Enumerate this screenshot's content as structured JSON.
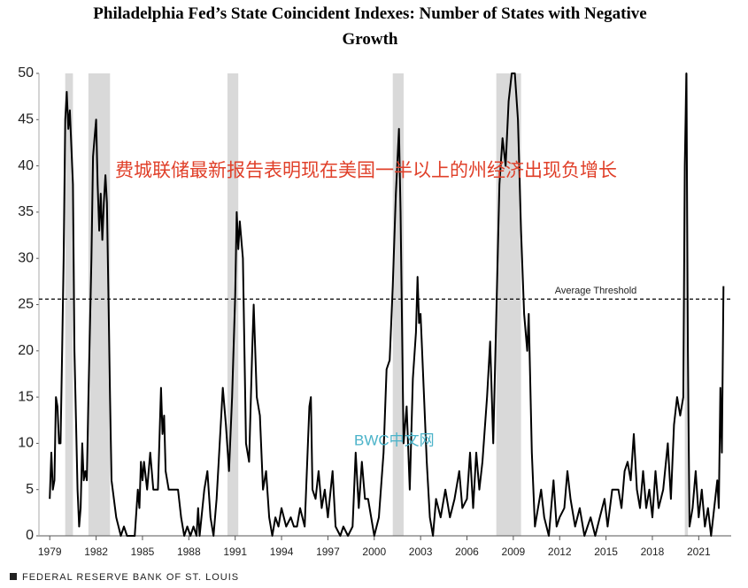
{
  "chart_data": {
    "type": "line",
    "title": "Philadelphia Fed’s State Coincident Indexes: Number of States with Negative Growth",
    "annotation": "费城联储最新报告表明现在美国一半以上的州经济出现负增长",
    "watermark": "BWC中文网",
    "source": "FEDERAL RESERVE BANK OF ST. LOUIS",
    "threshold": {
      "value": 25.6,
      "label": "Average Threshold"
    },
    "recessions": [
      [
        1980.0,
        1980.5
      ],
      [
        1981.5,
        1982.9
      ],
      [
        1990.5,
        1991.2
      ],
      [
        2001.2,
        2001.9
      ],
      [
        2007.9,
        2009.5
      ],
      [
        2020.1,
        2020.3
      ]
    ],
    "xlim": [
      1978.3,
      2023.1
    ],
    "xticks": [
      1979,
      1982,
      1985,
      1988,
      1991,
      1994,
      1997,
      2000,
      2003,
      2006,
      2009,
      2012,
      2015,
      2018,
      2021
    ],
    "ylim": [
      0,
      50
    ],
    "yticks": [
      0,
      5,
      10,
      15,
      20,
      25,
      30,
      35,
      40,
      45,
      50
    ],
    "series": [
      {
        "name": "States with negative growth",
        "color": "#000000",
        "x": [
          1979.0,
          1979.1,
          1979.2,
          1979.3,
          1979.4,
          1979.5,
          1979.6,
          1979.7,
          1979.8,
          1979.9,
          1980.0,
          1980.1,
          1980.2,
          1980.3,
          1980.5,
          1980.6,
          1980.8,
          1980.9,
          1981.0,
          1981.1,
          1981.2,
          1981.3,
          1981.4,
          1981.5,
          1981.7,
          1981.8,
          1981.9,
          1982.0,
          1982.1,
          1982.2,
          1982.3,
          1982.4,
          1982.5,
          1982.6,
          1982.7,
          1982.8,
          1982.9,
          1983.0,
          1983.3,
          1983.6,
          1983.8,
          1984.0,
          1984.5,
          1984.7,
          1984.8,
          1984.9,
          1985.0,
          1985.1,
          1985.3,
          1985.5,
          1985.7,
          1986.0,
          1986.2,
          1986.3,
          1986.4,
          1986.5,
          1986.7,
          1987.0,
          1987.3,
          1987.5,
          1987.7,
          1987.9,
          1988.1,
          1988.3,
          1988.5,
          1988.6,
          1988.7,
          1989.0,
          1989.2,
          1989.4,
          1989.6,
          1989.8,
          1990.0,
          1990.2,
          1990.4,
          1990.6,
          1990.8,
          1991.0,
          1991.1,
          1991.2,
          1991.3,
          1991.5,
          1991.7,
          1991.9,
          1992.1,
          1992.2,
          1992.4,
          1992.6,
          1992.8,
          1993.0,
          1993.2,
          1993.4,
          1993.6,
          1993.8,
          1994.0,
          1994.3,
          1994.6,
          1994.8,
          1995.0,
          1995.2,
          1995.5,
          1995.8,
          1995.9,
          1996.0,
          1996.2,
          1996.4,
          1996.6,
          1996.8,
          1997.0,
          1997.3,
          1997.5,
          1997.8,
          1998.0,
          1998.3,
          1998.6,
          1998.8,
          1999.0,
          1999.2,
          1999.4,
          1999.6,
          1999.8,
          2000.0,
          2000.3,
          2000.6,
          2000.8,
          2001.0,
          2001.2,
          2001.4,
          2001.6,
          2001.7,
          2001.9,
          2002.1,
          2002.3,
          2002.5,
          2002.7,
          2002.8,
          2002.9,
          2003.0,
          2003.2,
          2003.4,
          2003.6,
          2003.8,
          2004.0,
          2004.3,
          2004.6,
          2004.9,
          2005.2,
          2005.5,
          2005.7,
          2006.0,
          2006.2,
          2006.4,
          2006.6,
          2006.8,
          2007.0,
          2007.3,
          2007.5,
          2007.7,
          2007.9,
          2008.1,
          2008.3,
          2008.5,
          2008.7,
          2008.9,
          2009.1,
          2009.3,
          2009.5,
          2009.7,
          2009.9,
          2010.0,
          2010.2,
          2010.4,
          2010.6,
          2010.8,
          2011.0,
          2011.3,
          2011.6,
          2011.8,
          2012.0,
          2012.3,
          2012.5,
          2012.7,
          2013.0,
          2013.3,
          2013.6,
          2014.0,
          2014.3,
          2014.6,
          2014.9,
          2015.1,
          2015.4,
          2015.8,
          2016.0,
          2016.2,
          2016.4,
          2016.6,
          2016.8,
          2017.0,
          2017.2,
          2017.4,
          2017.6,
          2017.8,
          2018.0,
          2018.2,
          2018.4,
          2018.7,
          2019.0,
          2019.2,
          2019.4,
          2019.6,
          2019.8,
          2020.0,
          2020.1,
          2020.2,
          2020.3,
          2020.4,
          2020.6,
          2020.8,
          2021.0,
          2021.2,
          2021.4,
          2021.6,
          2021.8,
          2022.0,
          2022.2,
          2022.3,
          2022.4,
          2022.5,
          2022.6
        ],
        "values": [
          4,
          9,
          5,
          6,
          15,
          14,
          10,
          10,
          20,
          30,
          45,
          48,
          44,
          46,
          38,
          20,
          5,
          1,
          3,
          10,
          6,
          7,
          6,
          15,
          30,
          41,
          43,
          45,
          38,
          33,
          37,
          32,
          36,
          39,
          36,
          26,
          15,
          6,
          2,
          0,
          1,
          0,
          0,
          5,
          3,
          8,
          6,
          8,
          5,
          9,
          5,
          5,
          16,
          11,
          13,
          7,
          5,
          5,
          5,
          2,
          0,
          1,
          0,
          1,
          0,
          3,
          0,
          5,
          7,
          2,
          0,
          4,
          10,
          16,
          12,
          7,
          15,
          26,
          35,
          31,
          34,
          30,
          10,
          8,
          20,
          25,
          15,
          13,
          5,
          7,
          2,
          0,
          2,
          1,
          3,
          1,
          2,
          1,
          1,
          3,
          1,
          14,
          15,
          5,
          4,
          7,
          3,
          5,
          2,
          7,
          1,
          0,
          1,
          0,
          1,
          9,
          3,
          8,
          4,
          4,
          2,
          0,
          2,
          9,
          18,
          19,
          27,
          37,
          44,
          35,
          10,
          14,
          5,
          17,
          22,
          28,
          23,
          24,
          16,
          8,
          2,
          0,
          4,
          2,
          5,
          2,
          4,
          7,
          3,
          4,
          9,
          3,
          9,
          5,
          8,
          15,
          21,
          10,
          24,
          38,
          43,
          40,
          47,
          50,
          50,
          45,
          33,
          24,
          20,
          24,
          9,
          1,
          3,
          5,
          2,
          0,
          6,
          1,
          2,
          3,
          7,
          4,
          1,
          3,
          0,
          2,
          0,
          2,
          4,
          1,
          5,
          5,
          3,
          7,
          8,
          6,
          11,
          5,
          3,
          7,
          3,
          5,
          2,
          7,
          3,
          5,
          10,
          4,
          12,
          15,
          13,
          15,
          40,
          50,
          20,
          1,
          3,
          7,
          2,
          5,
          1,
          3,
          0,
          3,
          6,
          3,
          16,
          9,
          27
        ]
      }
    ]
  }
}
